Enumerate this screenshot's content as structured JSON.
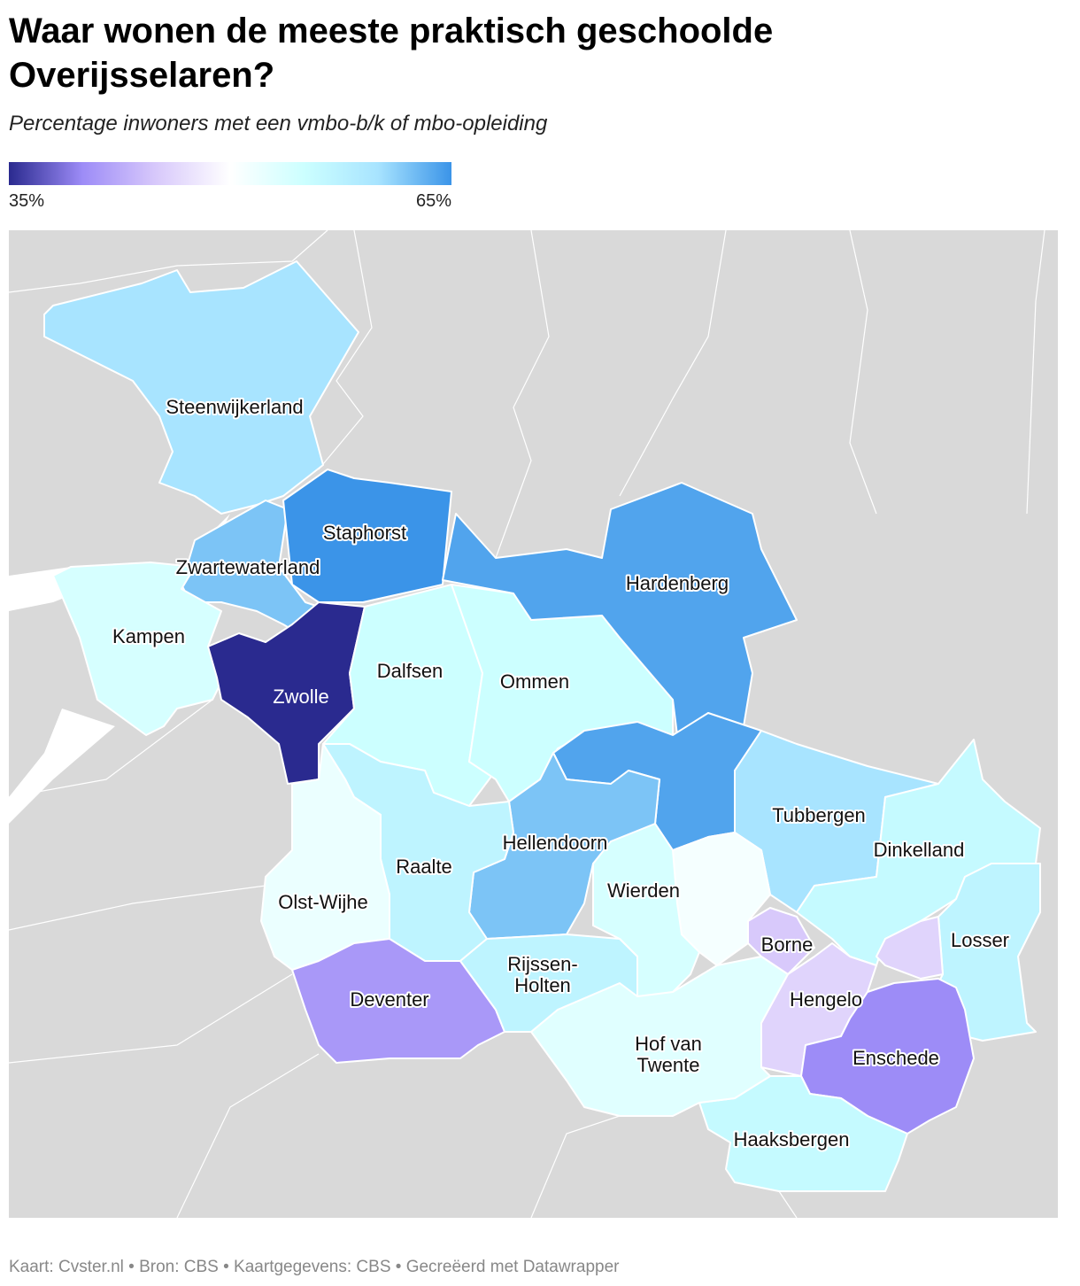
{
  "header": {
    "title": [
      "Waar wonen de meeste praktisch geschoolde",
      "Overijsselaren?"
    ],
    "subtitle": "Percentage inwoners met een vmbo-b/k of mbo-opleiding"
  },
  "legend": {
    "min": {
      "value": 35,
      "label": "35%"
    },
    "max": {
      "value": 65,
      "label": "65%"
    },
    "colors": [
      "#2a2a8f",
      "#9d8cf7",
      "#d8c9fb",
      "#ffffff",
      "#ccffff",
      "#a8e4ff",
      "#3b94e8"
    ]
  },
  "regions": [
    {
      "name": [
        "Steenwijkerland"
      ],
      "value": 60
    },
    {
      "name": [
        "Zwartewaterland"
      ],
      "value": 62
    },
    {
      "name": [
        "Staphorst"
      ],
      "value": 65
    },
    {
      "name": [
        "Kampen"
      ],
      "value": 54
    },
    {
      "name": [
        "Zwolle"
      ],
      "value": 35
    },
    {
      "name": [
        "Dalfsen"
      ],
      "value": 55
    },
    {
      "name": [
        "Ommen"
      ],
      "value": 55
    },
    {
      "name": [
        "Hardenberg"
      ],
      "value": 64
    },
    {
      "name": null,
      "value": 64
    },
    {
      "name": [
        "Tubbergen"
      ],
      "value": 60
    },
    {
      "name": [
        "Dinkelland"
      ],
      "value": 56
    },
    {
      "name": [
        "Losser"
      ],
      "value": 57
    },
    {
      "name": null,
      "value": 46
    },
    {
      "name": [
        "Hengelo"
      ],
      "value": 46
    },
    {
      "name": [
        "Borne"
      ],
      "value": 45
    },
    {
      "name": [
        "Enschede"
      ],
      "value": 40
    },
    {
      "name": [
        "Haaksbergen"
      ],
      "value": 56
    },
    {
      "name": [
        "Hof van",
        "Twente"
      ],
      "value": 53
    },
    {
      "name": null,
      "value": 51
    },
    {
      "name": [
        "Wierden"
      ],
      "value": 54
    },
    {
      "name": [
        "Hellendoorn"
      ],
      "value": 62
    },
    {
      "name": [
        "Raalte"
      ],
      "value": 57
    },
    {
      "name": [
        "Olst-Wijhe"
      ],
      "value": 52
    },
    {
      "name": [
        "Deventer"
      ],
      "value": 41
    },
    {
      "name": [
        "Rijssen-",
        "Holten"
      ],
      "value": 57
    }
  ],
  "footer": "Kaart: Cvster.nl • Bron: CBS • Kaartgegevens: CBS • Gecreëerd met Datawrapper"
}
